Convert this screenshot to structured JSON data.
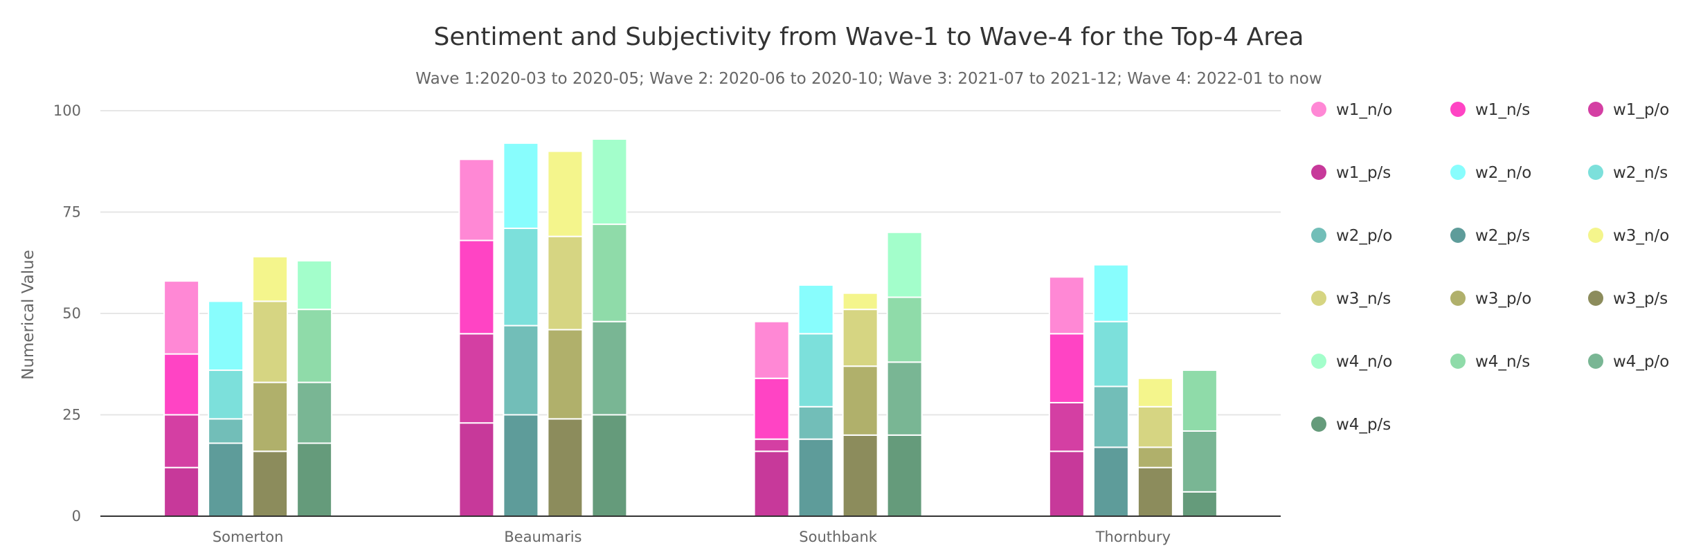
{
  "chart_data": {
    "type": "bar",
    "stacked": true,
    "title": "Sentiment and Subjectivity from Wave-1 to Wave-4 for the Top-4 Area",
    "subtitle": "Wave 1:2020-03 to 2020-05; Wave 2: 2020-06 to 2020-10; Wave 3: 2021-07 to 2021-12; Wave 4: 2022-01 to now",
    "ylabel": "Numerical Value",
    "xlabel": "",
    "ylim": [
      0,
      100
    ],
    "yticks": [
      0,
      25,
      50,
      75,
      100
    ],
    "grid": true,
    "legend_position": "right",
    "categories": [
      "Somerton",
      "Beaumaris",
      "Southbank",
      "Thornbury"
    ],
    "series": [
      {
        "name": "w1_n/o",
        "stack": "w1",
        "color": "#ff88d5",
        "values": [
          18,
          20,
          14,
          14
        ]
      },
      {
        "name": "w1_n/s",
        "stack": "w1",
        "color": "#ff44c4",
        "values": [
          15,
          23,
          15,
          17
        ]
      },
      {
        "name": "w1_p/o",
        "stack": "w1",
        "color": "#d43fa3",
        "values": [
          13,
          22,
          3,
          12
        ]
      },
      {
        "name": "w1_p/s",
        "stack": "w1",
        "color": "#c7399a",
        "values": [
          12,
          23,
          16,
          16
        ]
      },
      {
        "name": "w2_n/o",
        "stack": "w2",
        "color": "#88fdfd",
        "values": [
          17,
          21,
          12,
          14
        ]
      },
      {
        "name": "w2_n/s",
        "stack": "w2",
        "color": "#7ce0db",
        "values": [
          12,
          24,
          18,
          16
        ]
      },
      {
        "name": "w2_p/o",
        "stack": "w2",
        "color": "#72beb8",
        "values": [
          6,
          22,
          8,
          15
        ]
      },
      {
        "name": "w2_p/s",
        "stack": "w2",
        "color": "#5e9c9a",
        "values": [
          18,
          25,
          19,
          17
        ]
      },
      {
        "name": "w3_n/o",
        "stack": "w3",
        "color": "#f4f58c",
        "values": [
          11,
          21,
          4,
          7
        ]
      },
      {
        "name": "w3_n/s",
        "stack": "w3",
        "color": "#d6d582",
        "values": [
          20,
          23,
          14,
          10
        ]
      },
      {
        "name": "w3_p/o",
        "stack": "w3",
        "color": "#b0b06b",
        "values": [
          17,
          22,
          17,
          5
        ]
      },
      {
        "name": "w3_p/s",
        "stack": "w3",
        "color": "#8c8c5c",
        "values": [
          16,
          24,
          20,
          12
        ]
      },
      {
        "name": "w4_n/o",
        "stack": "w4",
        "color": "#a3fecb",
        "values": [
          12,
          21,
          16,
          0
        ]
      },
      {
        "name": "w4_n/s",
        "stack": "w4",
        "color": "#8fdba9",
        "values": [
          18,
          24,
          16,
          15
        ]
      },
      {
        "name": "w4_p/o",
        "stack": "w4",
        "color": "#79b694",
        "values": [
          15,
          23,
          18,
          15
        ]
      },
      {
        "name": "w4_p/s",
        "stack": "w4",
        "color": "#659b7b",
        "values": [
          18,
          25,
          20,
          6
        ]
      }
    ]
  }
}
